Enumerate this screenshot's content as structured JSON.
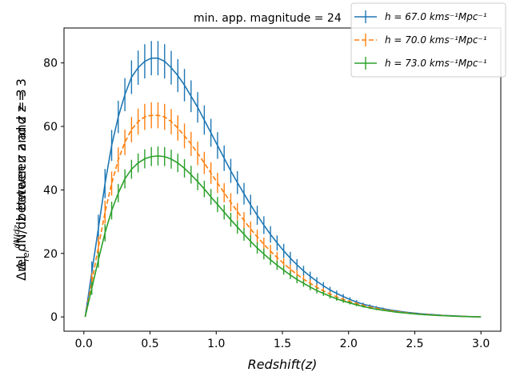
{
  "chart_data": {
    "type": "line",
    "title": "min. app. magnitude = 24",
    "xlabel": "Redshift(z)",
    "ylabel": "Δrel dN/dz between z and z = 3",
    "xlim": [
      -0.15,
      3.15
    ],
    "ylim": [
      -4.5,
      91
    ],
    "x_ticks": [
      0.0,
      0.5,
      1.0,
      1.5,
      2.0,
      2.5,
      3.0
    ],
    "x_tick_labels": [
      "0.0",
      "0.5",
      "1.0",
      "1.5",
      "2.0",
      "2.5",
      "3.0"
    ],
    "y_ticks": [
      0,
      20,
      40,
      60,
      80
    ],
    "y_tick_labels": [
      "0",
      "20",
      "40",
      "60",
      "80"
    ],
    "legend_position": "top-right",
    "grid": false,
    "series": [
      {
        "name": "h = 67.0 kms⁻¹Mpc⁻¹",
        "color": "#1f77b4",
        "linestyle": "solid",
        "x": [
          0.01,
          0.06,
          0.11,
          0.16,
          0.21,
          0.26,
          0.31,
          0.36,
          0.41,
          0.46,
          0.51,
          0.56,
          0.61,
          0.66,
          0.71,
          0.76,
          0.81,
          0.86,
          0.91,
          0.96,
          1.01,
          1.06,
          1.11,
          1.16,
          1.21,
          1.26,
          1.31,
          1.36,
          1.41,
          1.46,
          1.51,
          1.56,
          1.61,
          1.66,
          1.71,
          1.76,
          1.81,
          1.86,
          1.91,
          1.96,
          2.01,
          2.06,
          2.11,
          2.16,
          2.21,
          2.26,
          2.31,
          2.36,
          2.41,
          2.46,
          2.51,
          2.56,
          2.61,
          2.66,
          2.71,
          2.76,
          2.81,
          2.86,
          2.91,
          2.96,
          3.0
        ],
        "y": [
          0,
          14,
          28,
          42,
          54,
          63,
          70,
          75.5,
          78.5,
          80.5,
          81.5,
          81.5,
          80.5,
          78.5,
          76,
          73,
          69.5,
          66,
          62,
          58,
          54,
          50,
          46,
          42.3,
          38.8,
          35.3,
          32,
          28.9,
          26,
          23.3,
          20.8,
          18.5,
          16.4,
          14.5,
          12.8,
          11.2,
          9.8,
          8.5,
          7.4,
          6.4,
          5.5,
          4.7,
          4,
          3.5,
          3,
          2.6,
          2.2,
          1.9,
          1.6,
          1.35,
          1.15,
          0.95,
          0.8,
          0.65,
          0.5,
          0.4,
          0.3,
          0.2,
          0.12,
          0.05,
          0
        ],
        "err": [
          0,
          3.5,
          4.2,
          4.6,
          4.9,
          5.1,
          5.2,
          5.3,
          5.4,
          5.4,
          5.4,
          5.4,
          5.4,
          5.3,
          5.2,
          5.1,
          5.0,
          4.8,
          4.6,
          4.4,
          4.2,
          4.0,
          3.8,
          3.6,
          3.4,
          3.2,
          3.0,
          2.8,
          2.6,
          2.4,
          2.2,
          2.0,
          1.8,
          1.6,
          1.45,
          1.3,
          1.15,
          1.0,
          0.9,
          0.8,
          0.7,
          0.6,
          0.5,
          0.45,
          0.4,
          0.35,
          0.3,
          0.25,
          0.2,
          0.17,
          0.14,
          0.12,
          0.1,
          0.08,
          0.06,
          0.05,
          0.04,
          0.03,
          0.02,
          0.01,
          0
        ]
      },
      {
        "name": "h = 70.0 kms⁻¹Mpc⁻¹",
        "color": "#ff7f0e",
        "linestyle": "dashed",
        "x": [
          0.01,
          0.06,
          0.11,
          0.16,
          0.21,
          0.26,
          0.31,
          0.36,
          0.41,
          0.46,
          0.51,
          0.56,
          0.61,
          0.66,
          0.71,
          0.76,
          0.81,
          0.86,
          0.91,
          0.96,
          1.01,
          1.06,
          1.11,
          1.16,
          1.21,
          1.26,
          1.31,
          1.36,
          1.41,
          1.46,
          1.51,
          1.56,
          1.61,
          1.66,
          1.71,
          1.76,
          1.81,
          1.86,
          1.91,
          1.96,
          2.01,
          2.06,
          2.11,
          2.16,
          2.21,
          2.26,
          2.31,
          2.36,
          2.41,
          2.46,
          2.51,
          2.56,
          2.61,
          2.66,
          2.71,
          2.76,
          2.81,
          2.86,
          2.91,
          2.96,
          3.0
        ],
        "y": [
          0,
          11,
          22,
          33,
          42,
          49.5,
          55,
          59,
          61.5,
          63,
          63.5,
          63.5,
          63,
          61.5,
          59.5,
          57,
          54.5,
          51.5,
          48.5,
          45.3,
          42.2,
          39.1,
          36.1,
          33.2,
          30.4,
          27.7,
          25.2,
          22.9,
          20.7,
          18.7,
          16.8,
          15,
          13.4,
          11.9,
          10.6,
          9.3,
          8.2,
          7.2,
          6.3,
          5.5,
          4.8,
          4.2,
          3.6,
          3.1,
          2.7,
          2.3,
          2,
          1.7,
          1.45,
          1.2,
          1,
          0.85,
          0.7,
          0.55,
          0.45,
          0.35,
          0.25,
          0.18,
          0.1,
          0.04,
          0
        ],
        "err": [
          0,
          2.8,
          3.3,
          3.6,
          3.8,
          3.9,
          4.0,
          4.0,
          4.1,
          4.1,
          4.1,
          4.1,
          4.1,
          4.0,
          4.0,
          3.9,
          3.8,
          3.7,
          3.5,
          3.4,
          3.2,
          3.0,
          2.9,
          2.7,
          2.6,
          2.4,
          2.3,
          2.1,
          2.0,
          1.8,
          1.7,
          1.5,
          1.4,
          1.25,
          1.1,
          1.0,
          0.9,
          0.8,
          0.7,
          0.6,
          0.52,
          0.45,
          0.4,
          0.35,
          0.3,
          0.26,
          0.22,
          0.19,
          0.16,
          0.13,
          0.11,
          0.09,
          0.07,
          0.06,
          0.05,
          0.04,
          0.03,
          0.02,
          0.01,
          0.01,
          0
        ]
      },
      {
        "name": "h = 73.0 kms⁻¹Mpc⁻¹",
        "color": "#2ca02c",
        "linestyle": "solid",
        "x": [
          0.01,
          0.06,
          0.11,
          0.16,
          0.21,
          0.26,
          0.31,
          0.36,
          0.41,
          0.46,
          0.51,
          0.56,
          0.61,
          0.66,
          0.71,
          0.76,
          0.81,
          0.86,
          0.91,
          0.96,
          1.01,
          1.06,
          1.11,
          1.16,
          1.21,
          1.26,
          1.31,
          1.36,
          1.41,
          1.46,
          1.51,
          1.56,
          1.61,
          1.66,
          1.71,
          1.76,
          1.81,
          1.86,
          1.91,
          1.96,
          2.01,
          2.06,
          2.11,
          2.16,
          2.21,
          2.26,
          2.31,
          2.36,
          2.41,
          2.46,
          2.51,
          2.56,
          2.61,
          2.66,
          2.71,
          2.76,
          2.81,
          2.86,
          2.91,
          2.96,
          3.0
        ],
        "y": [
          0,
          9,
          18,
          26.5,
          33.5,
          39,
          43.5,
          46.5,
          48.5,
          49.8,
          50.5,
          50.7,
          50.5,
          49.7,
          48.5,
          46.8,
          44.8,
          42.6,
          40.3,
          37.8,
          35.4,
          33,
          30.6,
          28.3,
          26,
          23.8,
          21.7,
          19.8,
          18,
          16.3,
          14.7,
          13.2,
          11.8,
          10.6,
          9.4,
          8.3,
          7.4,
          6.5,
          5.7,
          5,
          4.4,
          3.8,
          3.3,
          2.8,
          2.4,
          2.1,
          1.8,
          1.5,
          1.3,
          1.1,
          0.9,
          0.75,
          0.6,
          0.5,
          0.4,
          0.3,
          0.22,
          0.15,
          0.09,
          0.04,
          0
        ],
        "err": [
          0,
          2.0,
          2.5,
          2.7,
          2.8,
          2.9,
          3.0,
          3.0,
          3.0,
          3.0,
          3.0,
          3.0,
          3.0,
          3.0,
          2.9,
          2.9,
          2.8,
          2.7,
          2.6,
          2.5,
          2.4,
          2.3,
          2.2,
          2.1,
          2.0,
          1.9,
          1.8,
          1.7,
          1.6,
          1.5,
          1.4,
          1.3,
          1.2,
          1.1,
          1.0,
          0.9,
          0.8,
          0.7,
          0.62,
          0.55,
          0.48,
          0.42,
          0.36,
          0.31,
          0.27,
          0.23,
          0.2,
          0.17,
          0.14,
          0.12,
          0.1,
          0.08,
          0.07,
          0.06,
          0.05,
          0.04,
          0.03,
          0.02,
          0.01,
          0.01,
          0
        ]
      }
    ]
  }
}
